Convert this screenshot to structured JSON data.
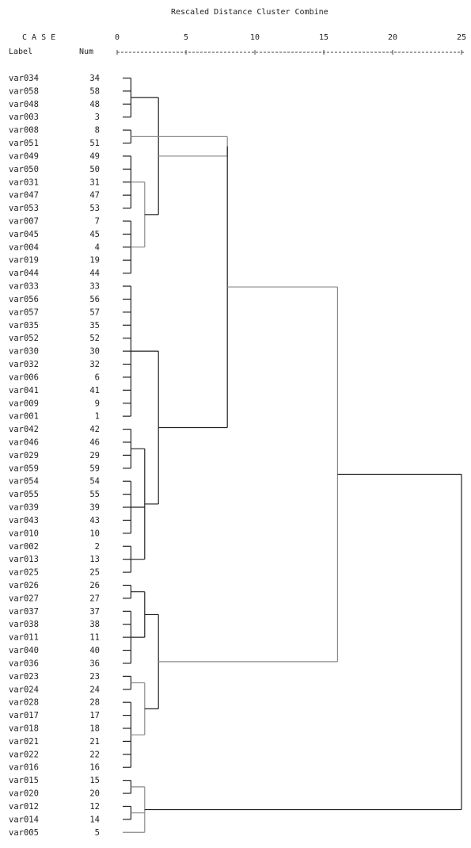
{
  "chart_data": {
    "type": "dendrogram",
    "title": "Rescaled Distance Cluster Combine",
    "header": {
      "case_label": "C A S E",
      "label_col": "Label",
      "num_col": "Num"
    },
    "xlim": [
      0,
      25
    ],
    "x_ticks": [
      "0",
      "5",
      "10",
      "15",
      "20",
      "25"
    ],
    "line_colors": {
      "dark": "#222222",
      "light": "#8a8a8a"
    },
    "cases": [
      {
        "label": "var034",
        "num": "34"
      },
      {
        "label": "var058",
        "num": "58"
      },
      {
        "label": "var048",
        "num": "48"
      },
      {
        "label": "var003",
        "num": "3"
      },
      {
        "label": "var008",
        "num": "8"
      },
      {
        "label": "var051",
        "num": "51"
      },
      {
        "label": "var049",
        "num": "49"
      },
      {
        "label": "var050",
        "num": "50"
      },
      {
        "label": "var031",
        "num": "31"
      },
      {
        "label": "var047",
        "num": "47"
      },
      {
        "label": "var053",
        "num": "53"
      },
      {
        "label": "var007",
        "num": "7"
      },
      {
        "label": "var045",
        "num": "45"
      },
      {
        "label": "var004",
        "num": "4"
      },
      {
        "label": "var019",
        "num": "19"
      },
      {
        "label": "var044",
        "num": "44"
      },
      {
        "label": "var033",
        "num": "33"
      },
      {
        "label": "var056",
        "num": "56"
      },
      {
        "label": "var057",
        "num": "57"
      },
      {
        "label": "var035",
        "num": "35"
      },
      {
        "label": "var052",
        "num": "52"
      },
      {
        "label": "var030",
        "num": "30"
      },
      {
        "label": "var032",
        "num": "32"
      },
      {
        "label": "var006",
        "num": "6"
      },
      {
        "label": "var041",
        "num": "41"
      },
      {
        "label": "var009",
        "num": "9"
      },
      {
        "label": "var001",
        "num": "1"
      },
      {
        "label": "var042",
        "num": "42"
      },
      {
        "label": "var046",
        "num": "46"
      },
      {
        "label": "var029",
        "num": "29"
      },
      {
        "label": "var059",
        "num": "59"
      },
      {
        "label": "var054",
        "num": "54"
      },
      {
        "label": "var055",
        "num": "55"
      },
      {
        "label": "var039",
        "num": "39"
      },
      {
        "label": "var043",
        "num": "43"
      },
      {
        "label": "var010",
        "num": "10"
      },
      {
        "label": "var002",
        "num": "2"
      },
      {
        "label": "var013",
        "num": "13"
      },
      {
        "label": "var025",
        "num": "25"
      },
      {
        "label": "var026",
        "num": "26"
      },
      {
        "label": "var027",
        "num": "27"
      },
      {
        "label": "var037",
        "num": "37"
      },
      {
        "label": "var038",
        "num": "38"
      },
      {
        "label": "var011",
        "num": "11"
      },
      {
        "label": "var040",
        "num": "40"
      },
      {
        "label": "var036",
        "num": "36"
      },
      {
        "label": "var023",
        "num": "23"
      },
      {
        "label": "var024",
        "num": "24"
      },
      {
        "label": "var028",
        "num": "28"
      },
      {
        "label": "var017",
        "num": "17"
      },
      {
        "label": "var018",
        "num": "18"
      },
      {
        "label": "var021",
        "num": "21"
      },
      {
        "label": "var022",
        "num": "22"
      },
      {
        "label": "var016",
        "num": "16"
      },
      {
        "label": "var015",
        "num": "15"
      },
      {
        "label": "var020",
        "num": "20"
      },
      {
        "label": "var012",
        "num": "12"
      },
      {
        "label": "var014",
        "num": "14"
      },
      {
        "label": "var005",
        "num": "5"
      }
    ],
    "merges": [
      {
        "id": "A1",
        "children": [
          "L0",
          "L1",
          "L2",
          "L3"
        ],
        "distance": 1,
        "color": "dark"
      },
      {
        "id": "A2",
        "children": [
          "L4",
          "L5"
        ],
        "distance": 1,
        "color": "dark"
      },
      {
        "id": "A3",
        "children": [
          "L6",
          "L7",
          "L8",
          "L9",
          "L10"
        ],
        "distance": 1,
        "color": "dark"
      },
      {
        "id": "A4",
        "children": [
          "L11",
          "L12",
          "L13",
          "L14",
          "L15"
        ],
        "distance": 1,
        "color": "dark"
      },
      {
        "id": "A5",
        "children": [
          "A3",
          "A4"
        ],
        "distance": 2,
        "color": "light"
      },
      {
        "id": "A6",
        "children": [
          "A1",
          "A5"
        ],
        "distance": 3,
        "color": "dark"
      },
      {
        "id": "A7",
        "children": [
          "A6",
          "A2"
        ],
        "distance": 8,
        "color": "light"
      },
      {
        "id": "B1",
        "children": [
          "L16",
          "L17",
          "L18",
          "L19",
          "L20",
          "L21",
          "L22",
          "L23",
          "L24",
          "L25",
          "L26"
        ],
        "distance": 1,
        "color": "dark"
      },
      {
        "id": "B2",
        "children": [
          "L27",
          "L28",
          "L29",
          "L30"
        ],
        "distance": 1,
        "color": "dark"
      },
      {
        "id": "B3",
        "children": [
          "L31",
          "L32",
          "L33",
          "L34",
          "L35"
        ],
        "distance": 1,
        "color": "dark"
      },
      {
        "id": "B4",
        "children": [
          "L36",
          "L37",
          "L38"
        ],
        "distance": 1,
        "color": "dark"
      },
      {
        "id": "B5",
        "children": [
          "B2",
          "B3",
          "B4"
        ],
        "distance": 2,
        "color": "dark"
      },
      {
        "id": "B6",
        "children": [
          "B1",
          "B5"
        ],
        "distance": 3,
        "color": "dark"
      },
      {
        "id": "AB",
        "children": [
          "A7",
          "B6"
        ],
        "distance": 8,
        "color": "dark"
      },
      {
        "id": "C1",
        "children": [
          "L39",
          "L40"
        ],
        "distance": 1,
        "color": "dark"
      },
      {
        "id": "C2",
        "children": [
          "L41",
          "L42",
          "L43",
          "L44",
          "L45"
        ],
        "distance": 1,
        "color": "dark"
      },
      {
        "id": "C3",
        "children": [
          "C1",
          "C2"
        ],
        "distance": 2,
        "color": "dark"
      },
      {
        "id": "C4",
        "children": [
          "L46",
          "L47"
        ],
        "distance": 1,
        "color": "dark"
      },
      {
        "id": "C5",
        "children": [
          "L48",
          "L49",
          "L50",
          "L51",
          "L52",
          "L53"
        ],
        "distance": 1,
        "color": "dark"
      },
      {
        "id": "C6",
        "children": [
          "C4",
          "C5"
        ],
        "distance": 2,
        "color": "light"
      },
      {
        "id": "C7",
        "children": [
          "C3",
          "C6"
        ],
        "distance": 3,
        "color": "dark"
      },
      {
        "id": "ABC",
        "children": [
          "AB",
          "C7"
        ],
        "distance": 16,
        "color": "light"
      },
      {
        "id": "D1",
        "children": [
          "L54",
          "L55"
        ],
        "distance": 1,
        "color": "dark"
      },
      {
        "id": "D2",
        "children": [
          "L56",
          "L57"
        ],
        "distance": 1,
        "color": "dark"
      },
      {
        "id": "D3",
        "children": [
          "D1",
          "D2",
          "L58"
        ],
        "distance": 2,
        "color": "light"
      },
      {
        "id": "ROOT",
        "children": [
          "ABC",
          "D3"
        ],
        "distance": 25,
        "color": "dark"
      }
    ]
  }
}
